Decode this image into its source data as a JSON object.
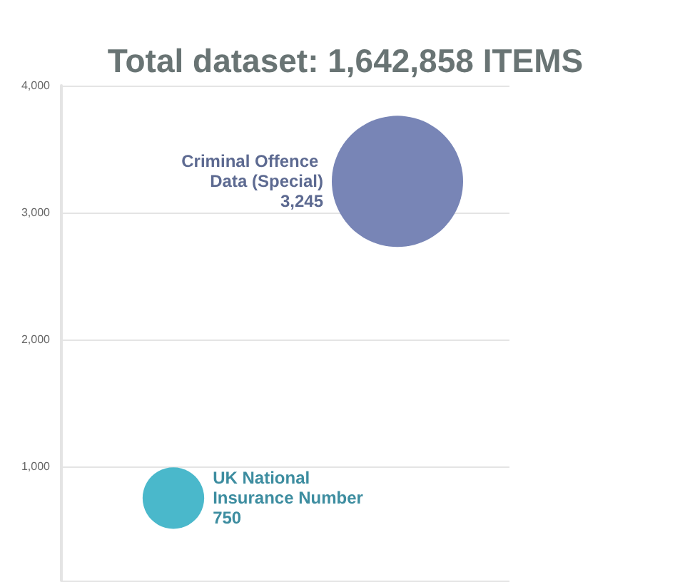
{
  "chart_data": {
    "type": "bubble",
    "title": "Total dataset: 1,642,858 ITEMS",
    "categories": [
      null,
      null
    ],
    "series": [
      {
        "name": "UK National Insurance Number",
        "color": "#4ab8cb",
        "values": [
          750,
          null
        ],
        "sizes": [
          0.22,
          null
        ],
        "value_labels": [
          "750",
          null
        ]
      },
      {
        "name": "Criminal Offence Data (Special)",
        "color": "#7885b6",
        "values": [
          null,
          3245
        ],
        "sizes": [
          null,
          1
        ],
        "value_labels": [
          null,
          "3,245"
        ]
      }
    ],
    "ylim": [
      100,
      4000
    ],
    "yticks": [
      {
        "value": 1000,
        "label": "1,000"
      },
      {
        "value": 2000,
        "label": "2,000"
      },
      {
        "value": 3000,
        "label": "3,000"
      },
      {
        "value": 4000,
        "label": "4,000"
      }
    ],
    "grid": "y",
    "legend": false,
    "tick_labels": "y"
  }
}
